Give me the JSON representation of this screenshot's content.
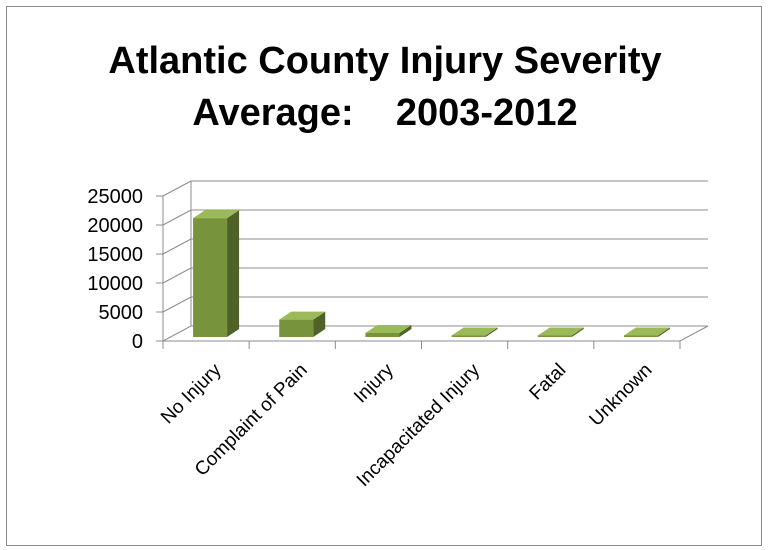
{
  "chart_data": {
    "type": "bar",
    "title_lines": [
      "Atlantic County Injury Severity",
      "Average:    2003-2012"
    ],
    "categories": [
      "No Injury",
      "Complaint of Pain",
      "Injury",
      "Incapacitated Injury",
      "Fatal",
      "Unknown"
    ],
    "values": [
      20500,
      3000,
      700,
      120,
      40,
      150
    ],
    "yticks": [
      0,
      5000,
      10000,
      15000,
      20000,
      25000
    ],
    "ylim": [
      0,
      25000
    ],
    "xlabel": "",
    "ylabel": "",
    "grid": true,
    "legend": "none",
    "bar_color_front": "#77933c",
    "bar_color_side": "#4f6228",
    "bar_color_top": "#9bbb59"
  }
}
